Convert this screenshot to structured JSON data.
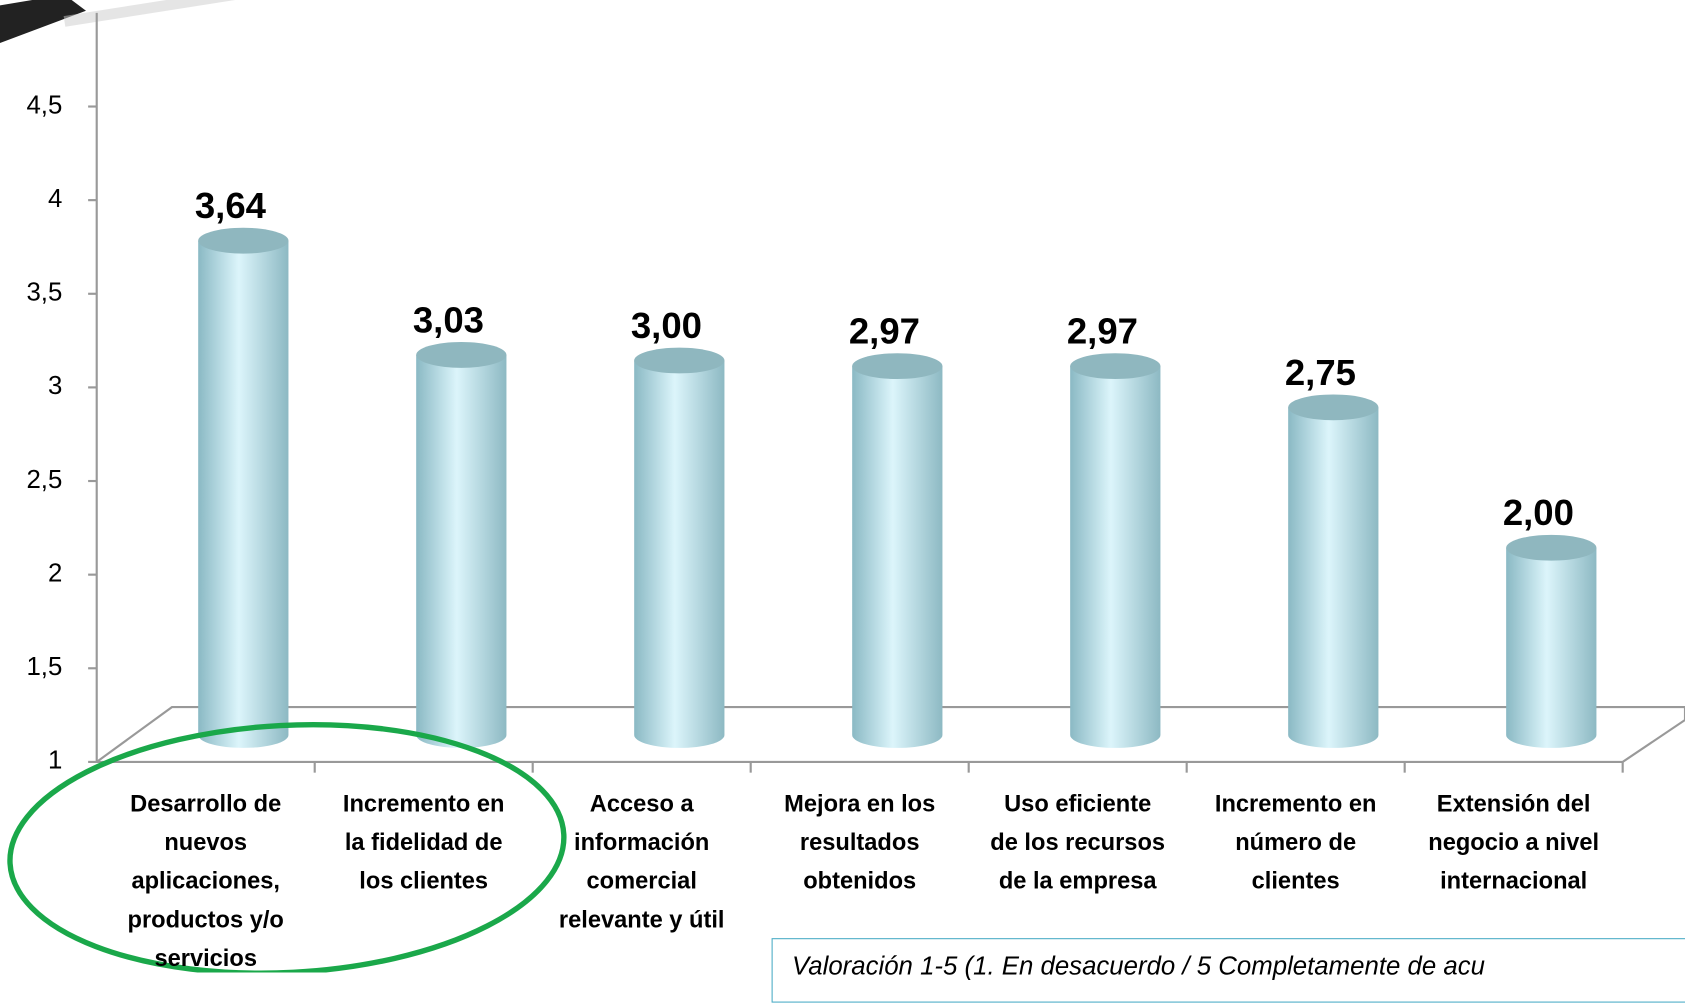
{
  "chart_data": {
    "type": "bar",
    "categories": [
      "Desarrollo de\nnuevos\naplicaciones,\nproductos  y/o\nservicios",
      "Incremento en\nla fidelidad de\nlos clientes",
      "Acceso a\ninformación\ncomercial\nrelevante y útil",
      "Mejora en los\nresultados\nobtenidos",
      "Uso eficiente\nde los recursos\nde la empresa",
      "Incremento en\nnúmero de\nclientes",
      "Extensión del\nnegocio a nivel\ninternacional"
    ],
    "values": [
      3.64,
      3.03,
      3.0,
      2.97,
      2.97,
      2.75,
      2.0
    ],
    "value_labels": [
      "3,64",
      "3,03",
      "3,00",
      "2,97",
      "2,97",
      "2,75",
      "2,00"
    ],
    "color": "#bfe6f0",
    "ylim": [
      1,
      5
    ],
    "yticks": [
      1,
      {
        "value": 1.5,
        "label": "1,5"
      },
      2,
      {
        "value": 2.5,
        "label": "2,5"
      },
      3,
      {
        "value": 3.5,
        "label": "3,5"
      },
      4,
      {
        "value": 4.5,
        "label": "4,5"
      }
    ],
    "annotation": "Valoración 1-5 (1. En desacuerdo / 5 Completamente de acu"
  }
}
